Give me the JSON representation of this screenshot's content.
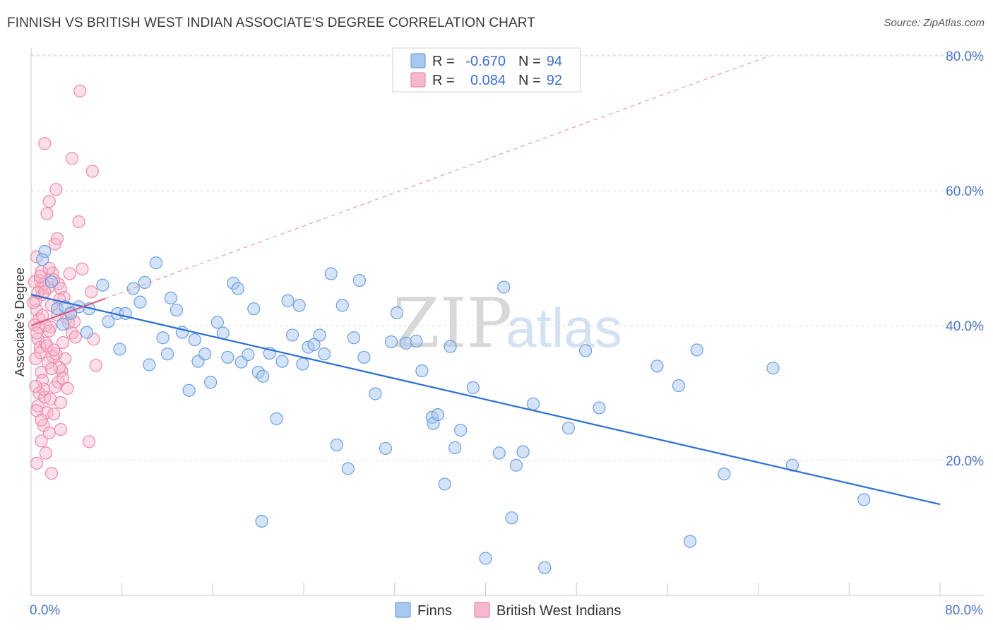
{
  "title": "FINNISH VS BRITISH WEST INDIAN ASSOCIATE'S DEGREE CORRELATION CHART",
  "source": "Source: ZipAtlas.com",
  "watermark": {
    "zip": "ZIP",
    "atlas": "atlas"
  },
  "legend": {
    "r_label": "R =",
    "n_label": "N =",
    "series": [
      {
        "r": "-0.670",
        "n": "94"
      },
      {
        "r": "0.084",
        "n": "92"
      }
    ]
  },
  "bottom_legend": [
    "Finns",
    "British West Indians"
  ],
  "colors": {
    "finns_fill": "#a9c8ef",
    "finns_stroke": "#6e9fe0",
    "finns_line": "#2b6fd4",
    "bwi_fill": "#f6b8cc",
    "bwi_stroke": "#ec89a8",
    "bwi_line": "#e0557f"
  },
  "chart_data": {
    "type": "scatter",
    "xlabel": "",
    "ylabel": "Associate's Degree",
    "xlim": [
      0,
      80
    ],
    "ylim": [
      0,
      82
    ],
    "x_tick_labels": [
      "0.0%",
      "80.0%"
    ],
    "y_ticks": [
      20,
      40,
      60,
      80
    ],
    "y_tick_labels": [
      "20.0%",
      "40.0%",
      "60.0%",
      "80.0%"
    ],
    "grid": true,
    "series": [
      {
        "name": "Finns",
        "trend": {
          "x0": 0,
          "y0": 44.6,
          "x1": 80,
          "y1": 13.5
        },
        "points": [
          [
            1.2,
            51
          ],
          [
            1.0,
            49.8
          ],
          [
            1.8,
            46.5
          ],
          [
            2.3,
            42.5
          ],
          [
            2.8,
            40.2
          ],
          [
            3.0,
            42.8
          ],
          [
            3.5,
            41.8
          ],
          [
            4.2,
            42.8
          ],
          [
            5.1,
            42.5
          ],
          [
            4.9,
            39.0
          ],
          [
            6.3,
            46.0
          ],
          [
            6.8,
            40.6
          ],
          [
            7.6,
            41.8
          ],
          [
            8.3,
            41.8
          ],
          [
            7.8,
            36.5
          ],
          [
            9.0,
            45.5
          ],
          [
            9.6,
            43.5
          ],
          [
            10.0,
            46.4
          ],
          [
            10.4,
            34.2
          ],
          [
            11.0,
            49.3
          ],
          [
            11.6,
            38.2
          ],
          [
            12.0,
            35.8
          ],
          [
            12.3,
            44.1
          ],
          [
            12.8,
            42.3
          ],
          [
            13.3,
            39.0
          ],
          [
            13.9,
            30.4
          ],
          [
            14.4,
            37.9
          ],
          [
            14.7,
            34.7
          ],
          [
            15.3,
            35.8
          ],
          [
            15.8,
            31.6
          ],
          [
            16.4,
            40.5
          ],
          [
            16.9,
            38.9
          ],
          [
            17.3,
            35.3
          ],
          [
            17.8,
            46.3
          ],
          [
            18.2,
            45.5
          ],
          [
            18.5,
            34.6
          ],
          [
            19.1,
            35.7
          ],
          [
            19.6,
            42.5
          ],
          [
            20.0,
            33.1
          ],
          [
            20.4,
            32.5
          ],
          [
            21.0,
            35.9
          ],
          [
            21.6,
            26.2
          ],
          [
            22.1,
            34.7
          ],
          [
            22.6,
            43.7
          ],
          [
            23.0,
            38.6
          ],
          [
            23.6,
            43.0
          ],
          [
            23.9,
            34.3
          ],
          [
            24.4,
            36.8
          ],
          [
            24.9,
            37.2
          ],
          [
            25.4,
            38.6
          ],
          [
            25.8,
            35.8
          ],
          [
            26.4,
            47.7
          ],
          [
            26.9,
            22.3
          ],
          [
            27.4,
            43.0
          ],
          [
            27.9,
            18.8
          ],
          [
            28.4,
            38.2
          ],
          [
            28.9,
            46.7
          ],
          [
            29.3,
            35.3
          ],
          [
            30.3,
            29.9
          ],
          [
            31.2,
            21.8
          ],
          [
            31.7,
            37.6
          ],
          [
            32.2,
            41.9
          ],
          [
            33.0,
            37.4
          ],
          [
            33.9,
            37.7
          ],
          [
            34.4,
            33.3
          ],
          [
            35.3,
            26.4
          ],
          [
            35.4,
            25.5
          ],
          [
            35.8,
            26.8
          ],
          [
            36.4,
            16.5
          ],
          [
            36.9,
            36.9
          ],
          [
            37.3,
            21.9
          ],
          [
            37.8,
            24.5
          ],
          [
            38.9,
            30.8
          ],
          [
            40.0,
            5.5
          ],
          [
            41.2,
            21.1
          ],
          [
            41.6,
            45.7
          ],
          [
            42.3,
            11.5
          ],
          [
            42.7,
            19.3
          ],
          [
            43.3,
            21.3
          ],
          [
            44.2,
            28.4
          ],
          [
            47.3,
            24.8
          ],
          [
            48.8,
            36.3
          ],
          [
            50.0,
            27.8
          ],
          [
            55.1,
            34.0
          ],
          [
            57.0,
            31.1
          ],
          [
            58.6,
            36.4
          ],
          [
            58.0,
            8.0
          ],
          [
            61.0,
            18.0
          ],
          [
            65.3,
            33.7
          ],
          [
            67.0,
            19.3
          ],
          [
            73.3,
            14.2
          ],
          [
            45.2,
            4.1
          ],
          [
            20.3,
            11.0
          ],
          [
            55.0,
            50.0
          ]
        ]
      },
      {
        "name": "British West Indians",
        "trend": {
          "x0": 0,
          "y0": 40.0,
          "x1": 6.5,
          "y1": 44.0
        },
        "extended_trend": {
          "x0": 6.5,
          "y0": 44.0,
          "x1": 65,
          "y1": 80.0
        },
        "points": [
          [
            0.5,
            50.2
          ],
          [
            0.8,
            46.7
          ],
          [
            0.9,
            45.5
          ],
          [
            0.5,
            42.3
          ],
          [
            0.7,
            41.0
          ],
          [
            0.3,
            40.1
          ],
          [
            0.6,
            38.0
          ],
          [
            0.8,
            36.8
          ],
          [
            0.4,
            35.1
          ],
          [
            0.9,
            33.1
          ],
          [
            1.0,
            31.9
          ],
          [
            0.7,
            30.0
          ],
          [
            1.2,
            29.4
          ],
          [
            0.6,
            28.1
          ],
          [
            1.4,
            27.1
          ],
          [
            1.1,
            25.2
          ],
          [
            1.6,
            24.1
          ],
          [
            0.9,
            22.9
          ],
          [
            1.3,
            21.1
          ],
          [
            0.5,
            19.6
          ],
          [
            1.8,
            18.1
          ],
          [
            1.2,
            67.0
          ],
          [
            1.6,
            58.4
          ],
          [
            1.4,
            56.6
          ],
          [
            2.2,
            60.2
          ],
          [
            3.6,
            64.8
          ],
          [
            4.2,
            55.4
          ],
          [
            5.4,
            62.9
          ],
          [
            4.3,
            74.8
          ],
          [
            2.1,
            52.1
          ],
          [
            2.3,
            52.9
          ],
          [
            1.9,
            47.8
          ],
          [
            2.4,
            46.2
          ],
          [
            2.6,
            45.5
          ],
          [
            2.9,
            44.2
          ],
          [
            3.1,
            41.1
          ],
          [
            3.3,
            40.4
          ],
          [
            3.6,
            38.9
          ],
          [
            2.8,
            37.5
          ],
          [
            3.0,
            35.1
          ],
          [
            2.7,
            33.3
          ],
          [
            2.4,
            31.6
          ],
          [
            2.1,
            30.9
          ],
          [
            1.7,
            29.1
          ],
          [
            2.0,
            26.9
          ],
          [
            2.6,
            24.6
          ],
          [
            4.5,
            48.4
          ],
          [
            3.4,
            47.7
          ],
          [
            5.3,
            45.0
          ],
          [
            5.5,
            38.0
          ],
          [
            5.1,
            22.8
          ],
          [
            5.7,
            34.1
          ],
          [
            3.9,
            38.3
          ],
          [
            1.5,
            45.6
          ],
          [
            1.0,
            44.6
          ],
          [
            0.4,
            43.7
          ],
          [
            1.8,
            43.0
          ],
          [
            0.7,
            39.7
          ],
          [
            1.3,
            37.4
          ],
          [
            0.8,
            36.0
          ],
          [
            1.9,
            35.4
          ],
          [
            1.5,
            34.5
          ],
          [
            2.5,
            33.8
          ],
          [
            1.1,
            30.6
          ],
          [
            0.5,
            27.4
          ],
          [
            2.8,
            32.2
          ],
          [
            3.2,
            30.7
          ],
          [
            1.6,
            48.5
          ],
          [
            0.9,
            48.0
          ],
          [
            2.0,
            46.8
          ],
          [
            1.1,
            46.1
          ],
          [
            0.6,
            44.9
          ],
          [
            2.3,
            41.6
          ],
          [
            1.7,
            39.8
          ],
          [
            3.8,
            40.6
          ],
          [
            1.4,
            37.0
          ],
          [
            2.2,
            35.8
          ],
          [
            0.3,
            46.5
          ],
          [
            0.5,
            38.9
          ],
          [
            1.0,
            41.5
          ],
          [
            0.2,
            43.4
          ],
          [
            1.3,
            40.0
          ],
          [
            0.8,
            47.3
          ],
          [
            2.5,
            43.9
          ],
          [
            3.5,
            42.0
          ],
          [
            1.6,
            39.2
          ],
          [
            2.0,
            36.4
          ],
          [
            0.4,
            31.0
          ],
          [
            1.8,
            33.6
          ],
          [
            2.6,
            28.6
          ],
          [
            0.9,
            26.0
          ],
          [
            1.2,
            45.0
          ]
        ]
      }
    ]
  }
}
